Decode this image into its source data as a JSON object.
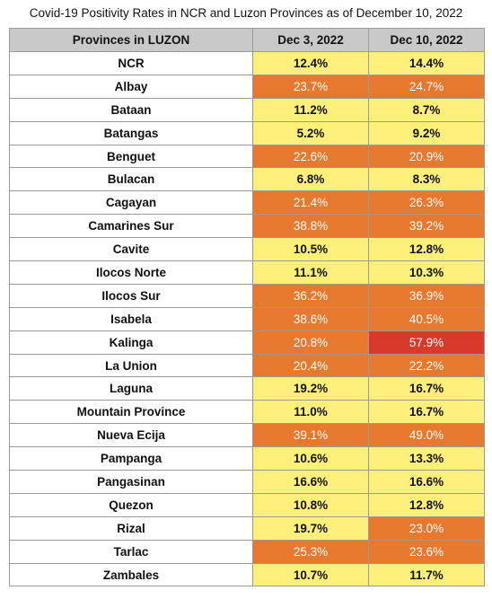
{
  "title": "Covid-19 Positivity Rates in NCR and Luzon Provinces as of December 10, 2022",
  "colors": {
    "yellow": "#fdf07a",
    "orange": "#e6792e",
    "red": "#d9392a",
    "header": "#c9c9c9"
  },
  "chart_data": {
    "type": "table",
    "columns": [
      "Provinces in LUZON",
      "Dec 3, 2022",
      "Dec 10, 2022"
    ],
    "rows": [
      {
        "province": "NCR",
        "dec3": "12.4%",
        "dec10": "14.4%",
        "dec3_level": "yellow",
        "dec10_level": "yellow"
      },
      {
        "province": "Albay",
        "dec3": "23.7%",
        "dec10": "24.7%",
        "dec3_level": "orange",
        "dec10_level": "orange"
      },
      {
        "province": "Bataan",
        "dec3": "11.2%",
        "dec10": "8.7%",
        "dec3_level": "yellow",
        "dec10_level": "yellow"
      },
      {
        "province": "Batangas",
        "dec3": "5.2%",
        "dec10": "9.2%",
        "dec3_level": "yellow",
        "dec10_level": "yellow"
      },
      {
        "province": "Benguet",
        "dec3": "22.6%",
        "dec10": "20.9%",
        "dec3_level": "orange",
        "dec10_level": "orange"
      },
      {
        "province": "Bulacan",
        "dec3": "6.8%",
        "dec10": "8.3%",
        "dec3_level": "yellow",
        "dec10_level": "yellow"
      },
      {
        "province": "Cagayan",
        "dec3": "21.4%",
        "dec10": "26.3%",
        "dec3_level": "orange",
        "dec10_level": "orange"
      },
      {
        "province": "Camarines Sur",
        "dec3": "38.8%",
        "dec10": "39.2%",
        "dec3_level": "orange",
        "dec10_level": "orange"
      },
      {
        "province": "Cavite",
        "dec3": "10.5%",
        "dec10": "12.8%",
        "dec3_level": "yellow",
        "dec10_level": "yellow"
      },
      {
        "province": "Ilocos Norte",
        "dec3": "11.1%",
        "dec10": "10.3%",
        "dec3_level": "yellow",
        "dec10_level": "yellow"
      },
      {
        "province": "Ilocos Sur",
        "dec3": "36.2%",
        "dec10": "36.9%",
        "dec3_level": "orange",
        "dec10_level": "orange"
      },
      {
        "province": "Isabela",
        "dec3": "38.6%",
        "dec10": "40.5%",
        "dec3_level": "orange",
        "dec10_level": "orange"
      },
      {
        "province": "Kalinga",
        "dec3": "20.8%",
        "dec10": "57.9%",
        "dec3_level": "orange",
        "dec10_level": "red"
      },
      {
        "province": "La Union",
        "dec3": "20.4%",
        "dec10": "22.2%",
        "dec3_level": "orange",
        "dec10_level": "orange"
      },
      {
        "province": "Laguna",
        "dec3": "19.2%",
        "dec10": "16.7%",
        "dec3_level": "yellow",
        "dec10_level": "yellow"
      },
      {
        "province": "Mountain Province",
        "dec3": "11.0%",
        "dec10": "16.7%",
        "dec3_level": "yellow",
        "dec10_level": "yellow"
      },
      {
        "province": "Nueva Ecija",
        "dec3": "39.1%",
        "dec10": "49.0%",
        "dec3_level": "orange",
        "dec10_level": "orange"
      },
      {
        "province": "Pampanga",
        "dec3": "10.6%",
        "dec10": "13.3%",
        "dec3_level": "yellow",
        "dec10_level": "yellow"
      },
      {
        "province": "Pangasinan",
        "dec3": "16.6%",
        "dec10": "16.6%",
        "dec3_level": "yellow",
        "dec10_level": "yellow"
      },
      {
        "province": "Quezon",
        "dec3": "10.8%",
        "dec10": "12.8%",
        "dec3_level": "yellow",
        "dec10_level": "yellow"
      },
      {
        "province": "Rizal",
        "dec3": "19.7%",
        "dec10": "23.0%",
        "dec3_level": "yellow",
        "dec10_level": "orange"
      },
      {
        "province": "Tarlac",
        "dec3": "25.3%",
        "dec10": "23.6%",
        "dec3_level": "orange",
        "dec10_level": "orange"
      },
      {
        "province": "Zambales",
        "dec3": "10.7%",
        "dec10": "11.7%",
        "dec3_level": "yellow",
        "dec10_level": "yellow"
      }
    ]
  }
}
